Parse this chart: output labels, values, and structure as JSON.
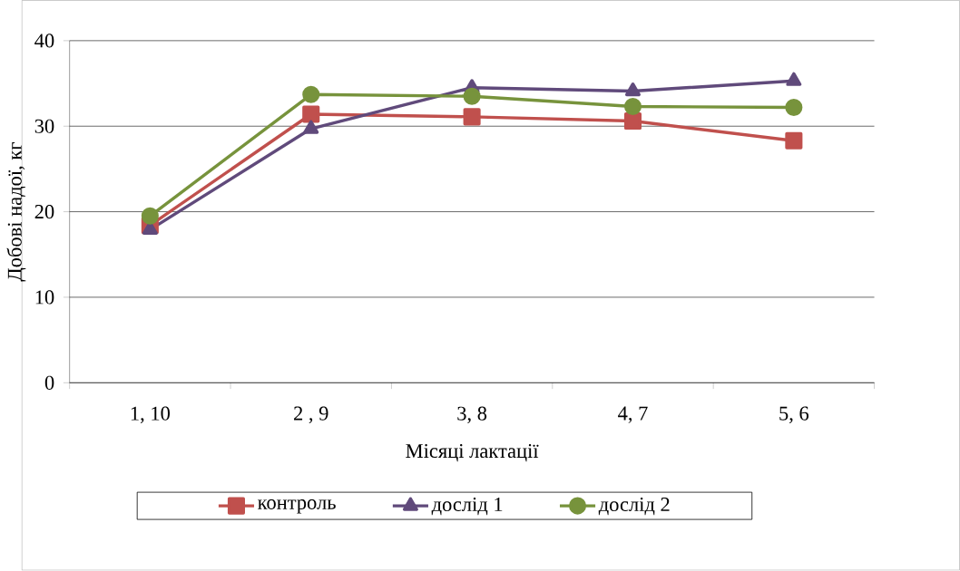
{
  "chart_data": {
    "type": "line",
    "xlabel": "Місяці лактації",
    "ylabel": "Добові надої, кг",
    "categories": [
      "1,  10",
      "2 , 9",
      "3,  8",
      "4,  7",
      "5,  6"
    ],
    "series": [
      {
        "name": "контроль",
        "color": "#c0504d",
        "marker": "square",
        "values": [
          18.4,
          31.4,
          31.1,
          30.6,
          28.3
        ]
      },
      {
        "name": "дослід 1",
        "color": "#604a7b",
        "marker": "triangle",
        "values": [
          17.9,
          29.7,
          34.5,
          34.1,
          35.3
        ]
      },
      {
        "name": "дослід 2",
        "color": "#77933c",
        "marker": "circle",
        "values": [
          19.5,
          33.7,
          33.5,
          32.3,
          32.2
        ]
      }
    ],
    "ylim": [
      0,
      40
    ],
    "yticks": [
      0,
      10,
      20,
      30,
      40
    ],
    "grid": "y",
    "legend": "bottom",
    "line_style": "solid"
  }
}
